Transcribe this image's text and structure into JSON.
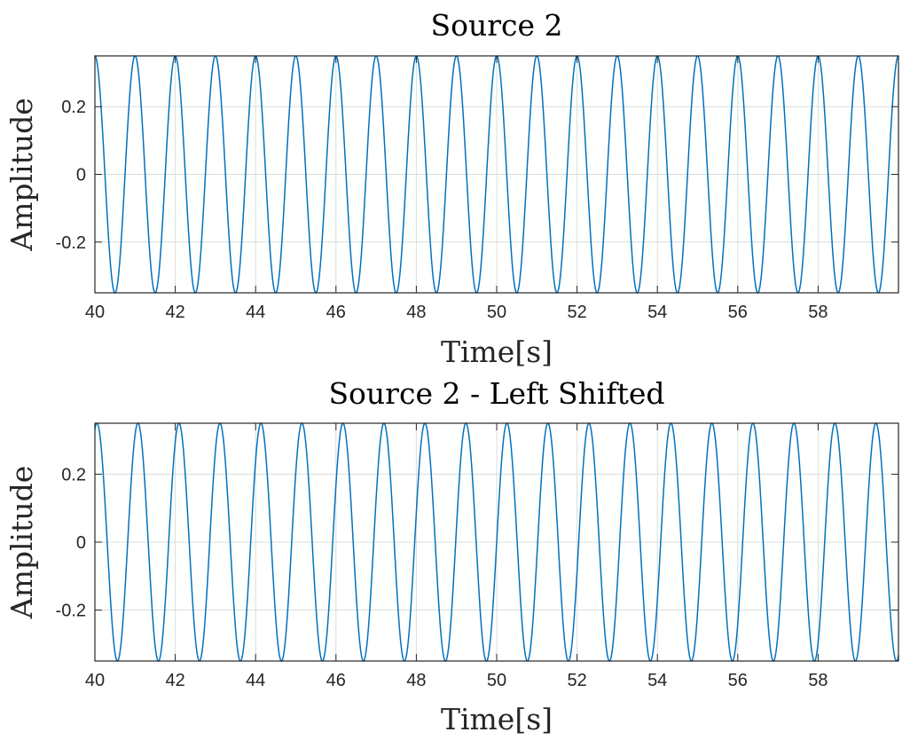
{
  "chart_data": [
    {
      "type": "line",
      "title": "Source 2",
      "xlabel": "Time[s]",
      "ylabel": "Amplitude",
      "xlim": [
        40,
        60
      ],
      "ylim": [
        -0.35,
        0.35
      ],
      "x_ticks": [
        40,
        42,
        44,
        46,
        48,
        50,
        52,
        54,
        56,
        58
      ],
      "y_ticks": [
        -0.2,
        0,
        0.2
      ],
      "x_tick_labels": [
        "40",
        "42",
        "44",
        "46",
        "48",
        "50",
        "52",
        "54",
        "56",
        "58"
      ],
      "y_tick_labels": [
        "-0.2",
        "0",
        "0.2"
      ],
      "grid": true,
      "series": [
        {
          "signal": "sinusoid",
          "amplitude": 0.35,
          "frequency_hz": 1,
          "phase_rad": 1.5708,
          "color": "#0072BD",
          "t_start": 40,
          "t_end": 60
        }
      ]
    },
    {
      "type": "line",
      "title": "Source 2 - Left Shifted",
      "xlabel": "Time[s]",
      "ylabel": "Amplitude",
      "xlim": [
        40,
        60
      ],
      "ylim": [
        -0.35,
        0.35
      ],
      "x_ticks": [
        40,
        42,
        44,
        46,
        48,
        50,
        52,
        54,
        56,
        58
      ],
      "y_ticks": [
        -0.2,
        0,
        0.2
      ],
      "x_tick_labels": [
        "40",
        "42",
        "44",
        "46",
        "48",
        "50",
        "52",
        "54",
        "56",
        "58"
      ],
      "y_tick_labels": [
        "-0.2",
        "0",
        "0.2"
      ],
      "grid": true,
      "series": [
        {
          "signal": "sinusoid",
          "amplitude": 0.35,
          "frequency_hz": 0.98,
          "phase_rad": 0,
          "color": "#0072BD",
          "t_start": 40,
          "t_end": 60
        }
      ]
    }
  ]
}
